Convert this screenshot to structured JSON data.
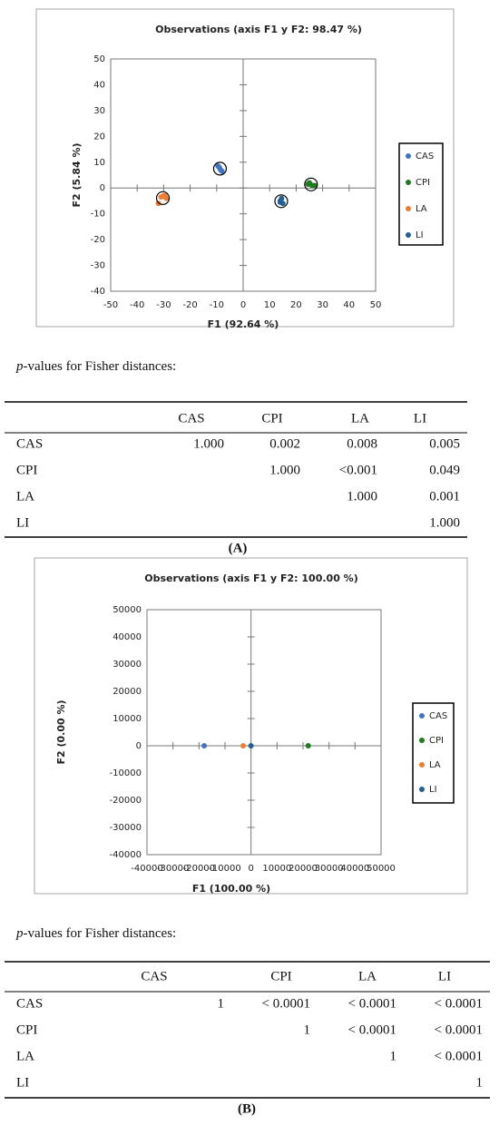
{
  "chart_data": [
    {
      "type": "scatter",
      "title": "Observations (axis F1 y F2: 98.47 %)",
      "x_label": "F1 (92.64 %)",
      "y_label": "F2 (5.84 %)",
      "xlim": [
        -50,
        50
      ],
      "xticks": [
        -50,
        -40,
        -30,
        -20,
        -10,
        0,
        10,
        20,
        30,
        40,
        50
      ],
      "ylim": [
        -40,
        50
      ],
      "yticks": [
        -40,
        -30,
        -20,
        -10,
        0,
        10,
        20,
        30,
        40,
        50
      ],
      "series": [
        {
          "name": "CAS",
          "color": "#4472c4",
          "x": [
            -9,
            -8.5,
            -9.5,
            -8
          ],
          "values": [
            8,
            7,
            8.5,
            6.5
          ]
        },
        {
          "name": "CPI",
          "color": "#1e7b1e",
          "x": [
            25,
            26,
            24.5,
            27
          ],
          "values": [
            2,
            1,
            1.5,
            1
          ]
        },
        {
          "name": "LA",
          "color": "#ed7d31",
          "x": [
            -30,
            -29,
            -31,
            -32,
            -29.5
          ],
          "values": [
            -3,
            -4,
            -3.5,
            -6,
            -3
          ]
        },
        {
          "name": "LI",
          "color": "#255e91",
          "x": [
            14,
            14.5,
            15,
            14
          ],
          "values": [
            -5,
            -4,
            -6,
            -5.5
          ]
        }
      ]
    },
    {
      "type": "scatter",
      "title": "Observations (axis F1 y F2: 100.00 %)",
      "x_label": "F1 (100.00 %)",
      "y_label": "F2 (0.00 %)",
      "xlim": [
        -40000,
        50000
      ],
      "xticks": [
        -40000,
        -30000,
        -20000,
        -10000,
        0,
        10000,
        20000,
        30000,
        40000,
        50000
      ],
      "ylim": [
        -40000,
        50000
      ],
      "yticks": [
        -40000,
        -30000,
        -20000,
        -10000,
        0,
        10000,
        20000,
        30000,
        40000,
        50000
      ],
      "series": [
        {
          "name": "CAS",
          "color": "#4472c4",
          "x": [
            -18000
          ],
          "values": [
            0
          ]
        },
        {
          "name": "CPI",
          "color": "#1e7b1e",
          "x": [
            22000
          ],
          "values": [
            0
          ]
        },
        {
          "name": "LA",
          "color": "#ed7d31",
          "x": [
            -3000
          ],
          "values": [
            0
          ]
        },
        {
          "name": "LI",
          "color": "#255e91",
          "x": [
            0
          ],
          "values": [
            0
          ]
        }
      ]
    }
  ],
  "sections": [
    {
      "note_italic": "p",
      "note": "-values for Fisher distances:",
      "label": "(A)",
      "table": {
        "columns": [
          "CAS",
          "CPI",
          "LA",
          "LI"
        ],
        "rows": [
          {
            "label": "CAS",
            "cells": [
              "1.000",
              "0.002",
              "0.008",
              "0.005"
            ]
          },
          {
            "label": "CPI",
            "cells": [
              "1.000",
              "<0.001",
              "0.049"
            ]
          },
          {
            "label": "LA",
            "cells": [
              "1.000",
              "0.001"
            ]
          },
          {
            "label": "LI",
            "cells": [
              "1.000"
            ]
          }
        ]
      }
    },
    {
      "note_italic": "p",
      "note": "-values for Fisher distances:",
      "label": "(B)",
      "table": {
        "columns": [
          "CAS",
          "CPI",
          "LA",
          "LI"
        ],
        "rows": [
          {
            "label": "CAS",
            "cells": [
              "1",
              "< 0.0001",
              "< 0.0001",
              "< 0.0001"
            ]
          },
          {
            "label": "CPI",
            "cells": [
              "1",
              "< 0.0001",
              "< 0.0001"
            ]
          },
          {
            "label": "LA",
            "cells": [
              "1",
              "< 0.0001"
            ]
          },
          {
            "label": "LI",
            "cells": [
              "1"
            ]
          }
        ]
      }
    }
  ]
}
